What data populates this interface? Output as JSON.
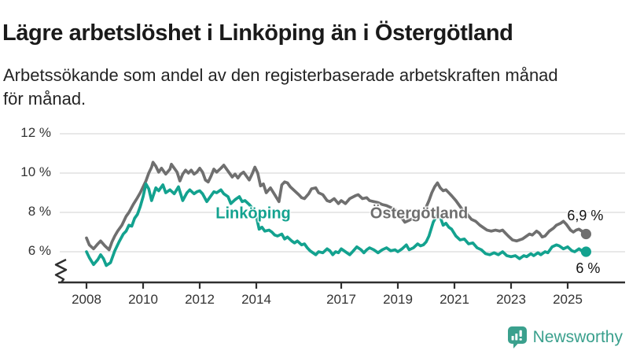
{
  "header": {
    "title": "Lägre arbetslöshet i Linköping än i Östergötland",
    "subtitle_line1": "Arbetssökande som andel av den registerbaserade arbetskraften månad",
    "subtitle_line2": "för månad."
  },
  "logo": {
    "text": "Newsworthy",
    "color": "#3aa08d",
    "icon": "newsworthy-bar-chart-bubble-icon"
  },
  "chart_data": {
    "type": "line",
    "title": "Lägre arbetslöshet i Linköping än i Östergötland",
    "unit": "%",
    "xlim": [
      2008,
      2026
    ],
    "ylim": [
      5.2,
      12.6
    ],
    "y_axis_break": true,
    "grid": "horizontal",
    "legend_position": "inline-labels",
    "x_ticks": [
      2008,
      2010,
      2012,
      2014,
      2017,
      2019,
      2021,
      2023,
      2025
    ],
    "x_tick_labels": [
      "2008",
      "2010",
      "2012",
      "2014",
      "2017",
      "2019",
      "2021",
      "2023",
      "2025"
    ],
    "y_ticks": [
      6,
      8,
      10,
      12
    ],
    "y_tick_labels": [
      "6 %",
      "8 %",
      "10 %",
      "12 %"
    ],
    "colors": {
      "linkoping": "#13a28f",
      "ostergotland": "#6f6f6f",
      "gridline": "#d9d9d9",
      "axis": "#2f2f2f",
      "tick_text": "#333333",
      "value_text": "#111111"
    },
    "series": [
      {
        "name": "Linköping",
        "color": "#13a28f",
        "end_label": "6 %",
        "end_value": 6.0,
        "points": [
          [
            2008.0,
            6.0
          ],
          [
            2008.1,
            5.7
          ],
          [
            2008.25,
            5.35
          ],
          [
            2008.4,
            5.6
          ],
          [
            2008.5,
            5.85
          ],
          [
            2008.6,
            5.65
          ],
          [
            2008.7,
            5.3
          ],
          [
            2008.85,
            5.45
          ],
          [
            2009.0,
            6.05
          ],
          [
            2009.15,
            6.5
          ],
          [
            2009.3,
            6.9
          ],
          [
            2009.4,
            7.05
          ],
          [
            2009.5,
            7.35
          ],
          [
            2009.6,
            7.3
          ],
          [
            2009.7,
            7.7
          ],
          [
            2009.8,
            7.9
          ],
          [
            2009.9,
            8.3
          ],
          [
            2010.0,
            8.8
          ],
          [
            2010.1,
            9.45
          ],
          [
            2010.2,
            9.2
          ],
          [
            2010.3,
            8.6
          ],
          [
            2010.45,
            9.25
          ],
          [
            2010.55,
            9.1
          ],
          [
            2010.7,
            9.4
          ],
          [
            2010.8,
            9.0
          ],
          [
            2010.95,
            9.15
          ],
          [
            2011.1,
            8.95
          ],
          [
            2011.25,
            9.3
          ],
          [
            2011.4,
            8.6
          ],
          [
            2011.55,
            9.0
          ],
          [
            2011.65,
            9.15
          ],
          [
            2011.8,
            8.95
          ],
          [
            2011.9,
            9.05
          ],
          [
            2012.0,
            9.1
          ],
          [
            2012.1,
            8.95
          ],
          [
            2012.25,
            8.55
          ],
          [
            2012.4,
            8.85
          ],
          [
            2012.5,
            9.05
          ],
          [
            2012.6,
            9.0
          ],
          [
            2012.75,
            9.15
          ],
          [
            2012.85,
            8.95
          ],
          [
            2013.0,
            8.8
          ],
          [
            2013.1,
            8.45
          ],
          [
            2013.25,
            8.65
          ],
          [
            2013.4,
            8.8
          ],
          [
            2013.5,
            8.55
          ],
          [
            2013.6,
            8.6
          ],
          [
            2013.75,
            8.4
          ],
          [
            2013.9,
            8.15
          ],
          [
            2014.0,
            7.8
          ],
          [
            2014.1,
            7.15
          ],
          [
            2014.2,
            7.25
          ],
          [
            2014.3,
            7.05
          ],
          [
            2014.45,
            7.1
          ],
          [
            2014.55,
            7.0
          ],
          [
            2014.65,
            6.85
          ],
          [
            2014.75,
            6.8
          ],
          [
            2014.9,
            6.9
          ],
          [
            2015.0,
            6.65
          ],
          [
            2015.1,
            6.75
          ],
          [
            2015.25,
            6.55
          ],
          [
            2015.35,
            6.45
          ],
          [
            2015.45,
            6.55
          ],
          [
            2015.6,
            6.35
          ],
          [
            2015.7,
            6.4
          ],
          [
            2015.8,
            6.2
          ],
          [
            2015.9,
            6.05
          ],
          [
            2016.0,
            5.95
          ],
          [
            2016.1,
            5.85
          ],
          [
            2016.2,
            6.0
          ],
          [
            2016.35,
            5.95
          ],
          [
            2016.5,
            6.15
          ],
          [
            2016.6,
            6.05
          ],
          [
            2016.7,
            5.85
          ],
          [
            2016.8,
            6.0
          ],
          [
            2016.9,
            5.95
          ],
          [
            2017.0,
            6.15
          ],
          [
            2017.1,
            6.05
          ],
          [
            2017.3,
            5.85
          ],
          [
            2017.4,
            6.0
          ],
          [
            2017.55,
            6.25
          ],
          [
            2017.7,
            6.1
          ],
          [
            2017.8,
            5.95
          ],
          [
            2017.9,
            6.1
          ],
          [
            2018.0,
            6.2
          ],
          [
            2018.15,
            6.1
          ],
          [
            2018.3,
            5.95
          ],
          [
            2018.45,
            6.1
          ],
          [
            2018.6,
            6.2
          ],
          [
            2018.75,
            6.05
          ],
          [
            2018.9,
            6.1
          ],
          [
            2019.0,
            6.0
          ],
          [
            2019.15,
            6.15
          ],
          [
            2019.3,
            6.35
          ],
          [
            2019.4,
            6.1
          ],
          [
            2019.55,
            6.2
          ],
          [
            2019.7,
            6.4
          ],
          [
            2019.8,
            6.3
          ],
          [
            2019.9,
            6.35
          ],
          [
            2020.0,
            6.5
          ],
          [
            2020.1,
            6.8
          ],
          [
            2020.25,
            7.5
          ],
          [
            2020.4,
            7.9
          ],
          [
            2020.5,
            7.75
          ],
          [
            2020.6,
            7.35
          ],
          [
            2020.7,
            7.45
          ],
          [
            2020.8,
            7.25
          ],
          [
            2020.9,
            7.15
          ],
          [
            2021.05,
            6.8
          ],
          [
            2021.2,
            6.6
          ],
          [
            2021.35,
            6.65
          ],
          [
            2021.5,
            6.4
          ],
          [
            2021.65,
            6.45
          ],
          [
            2021.8,
            6.2
          ],
          [
            2021.95,
            6.1
          ],
          [
            2022.1,
            5.9
          ],
          [
            2022.25,
            5.85
          ],
          [
            2022.4,
            5.95
          ],
          [
            2022.55,
            5.85
          ],
          [
            2022.7,
            6.0
          ],
          [
            2022.85,
            5.8
          ],
          [
            2023.0,
            5.75
          ],
          [
            2023.15,
            5.8
          ],
          [
            2023.3,
            5.65
          ],
          [
            2023.45,
            5.8
          ],
          [
            2023.55,
            5.75
          ],
          [
            2023.7,
            5.9
          ],
          [
            2023.8,
            5.8
          ],
          [
            2023.95,
            5.95
          ],
          [
            2024.05,
            5.85
          ],
          [
            2024.2,
            6.0
          ],
          [
            2024.3,
            5.95
          ],
          [
            2024.45,
            6.25
          ],
          [
            2024.6,
            6.35
          ],
          [
            2024.7,
            6.3
          ],
          [
            2024.85,
            6.15
          ],
          [
            2025.0,
            6.25
          ],
          [
            2025.15,
            6.05
          ],
          [
            2025.25,
            6.0
          ],
          [
            2025.4,
            6.15
          ],
          [
            2025.5,
            6.05
          ],
          [
            2025.65,
            6.0
          ]
        ]
      },
      {
        "name": "Östergötland",
        "color": "#6f6f6f",
        "end_label": "6,9 %",
        "end_value": 6.9,
        "points": [
          [
            2008.0,
            6.7
          ],
          [
            2008.1,
            6.35
          ],
          [
            2008.25,
            6.15
          ],
          [
            2008.4,
            6.4
          ],
          [
            2008.5,
            6.55
          ],
          [
            2008.65,
            6.3
          ],
          [
            2008.8,
            6.1
          ],
          [
            2008.9,
            6.5
          ],
          [
            2009.0,
            6.8
          ],
          [
            2009.1,
            7.05
          ],
          [
            2009.25,
            7.35
          ],
          [
            2009.4,
            7.8
          ],
          [
            2009.5,
            8.0
          ],
          [
            2009.65,
            8.4
          ],
          [
            2009.8,
            8.75
          ],
          [
            2009.9,
            9.0
          ],
          [
            2010.0,
            9.3
          ],
          [
            2010.1,
            9.6
          ],
          [
            2010.2,
            10.0
          ],
          [
            2010.3,
            10.3
          ],
          [
            2010.35,
            10.55
          ],
          [
            2010.45,
            10.35
          ],
          [
            2010.55,
            10.05
          ],
          [
            2010.65,
            10.25
          ],
          [
            2010.8,
            9.95
          ],
          [
            2010.95,
            10.2
          ],
          [
            2011.0,
            10.45
          ],
          [
            2011.1,
            10.25
          ],
          [
            2011.2,
            10.05
          ],
          [
            2011.3,
            9.6
          ],
          [
            2011.4,
            9.95
          ],
          [
            2011.5,
            10.15
          ],
          [
            2011.6,
            10.0
          ],
          [
            2011.7,
            10.15
          ],
          [
            2011.8,
            9.95
          ],
          [
            2011.9,
            10.05
          ],
          [
            2012.0,
            10.25
          ],
          [
            2012.1,
            10.05
          ],
          [
            2012.2,
            9.65
          ],
          [
            2012.3,
            9.55
          ],
          [
            2012.4,
            9.85
          ],
          [
            2012.5,
            10.2
          ],
          [
            2012.6,
            10.05
          ],
          [
            2012.75,
            10.25
          ],
          [
            2012.85,
            10.4
          ],
          [
            2012.95,
            10.2
          ],
          [
            2013.05,
            10.0
          ],
          [
            2013.15,
            9.8
          ],
          [
            2013.25,
            9.95
          ],
          [
            2013.35,
            9.75
          ],
          [
            2013.45,
            9.95
          ],
          [
            2013.55,
            10.05
          ],
          [
            2013.65,
            9.85
          ],
          [
            2013.75,
            9.65
          ],
          [
            2013.85,
            9.95
          ],
          [
            2013.95,
            10.3
          ],
          [
            2014.05,
            10.0
          ],
          [
            2014.15,
            9.35
          ],
          [
            2014.25,
            9.45
          ],
          [
            2014.35,
            9.0
          ],
          [
            2014.5,
            9.25
          ],
          [
            2014.65,
            8.9
          ],
          [
            2014.8,
            8.55
          ],
          [
            2014.9,
            9.4
          ],
          [
            2015.0,
            9.55
          ],
          [
            2015.1,
            9.5
          ],
          [
            2015.2,
            9.3
          ],
          [
            2015.35,
            9.1
          ],
          [
            2015.5,
            8.9
          ],
          [
            2015.6,
            8.75
          ],
          [
            2015.7,
            8.7
          ],
          [
            2015.85,
            8.95
          ],
          [
            2015.95,
            9.2
          ],
          [
            2016.1,
            9.25
          ],
          [
            2016.2,
            9.0
          ],
          [
            2016.35,
            8.9
          ],
          [
            2016.5,
            8.6
          ],
          [
            2016.6,
            8.55
          ],
          [
            2016.75,
            8.7
          ],
          [
            2016.9,
            8.45
          ],
          [
            2017.0,
            8.6
          ],
          [
            2017.15,
            8.45
          ],
          [
            2017.3,
            8.7
          ],
          [
            2017.5,
            8.85
          ],
          [
            2017.6,
            8.9
          ],
          [
            2017.75,
            8.7
          ],
          [
            2017.9,
            8.75
          ],
          [
            2018.0,
            8.6
          ],
          [
            2018.15,
            8.55
          ],
          [
            2018.3,
            8.5
          ],
          [
            2018.45,
            8.4
          ],
          [
            2018.6,
            8.35
          ],
          [
            2018.75,
            8.25
          ],
          [
            2018.9,
            8.15
          ],
          [
            2019.0,
            8.0
          ],
          [
            2019.1,
            7.8
          ],
          [
            2019.25,
            7.5
          ],
          [
            2019.4,
            7.6
          ],
          [
            2019.55,
            7.7
          ],
          [
            2019.7,
            7.85
          ],
          [
            2019.85,
            7.95
          ],
          [
            2019.95,
            8.1
          ],
          [
            2020.1,
            8.6
          ],
          [
            2020.2,
            9.0
          ],
          [
            2020.3,
            9.3
          ],
          [
            2020.4,
            9.5
          ],
          [
            2020.5,
            9.25
          ],
          [
            2020.6,
            9.1
          ],
          [
            2020.7,
            9.15
          ],
          [
            2020.8,
            9.0
          ],
          [
            2020.9,
            8.85
          ],
          [
            2021.05,
            8.6
          ],
          [
            2021.15,
            8.4
          ],
          [
            2021.3,
            8.1
          ],
          [
            2021.45,
            7.9
          ],
          [
            2021.6,
            7.65
          ],
          [
            2021.75,
            7.55
          ],
          [
            2021.9,
            7.35
          ],
          [
            2022.0,
            7.25
          ],
          [
            2022.15,
            7.1
          ],
          [
            2022.3,
            7.05
          ],
          [
            2022.45,
            7.1
          ],
          [
            2022.6,
            7.05
          ],
          [
            2022.7,
            7.1
          ],
          [
            2022.8,
            6.95
          ],
          [
            2022.9,
            6.8
          ],
          [
            2023.05,
            6.6
          ],
          [
            2023.2,
            6.55
          ],
          [
            2023.3,
            6.6
          ],
          [
            2023.4,
            6.65
          ],
          [
            2023.5,
            6.75
          ],
          [
            2023.65,
            6.9
          ],
          [
            2023.75,
            6.85
          ],
          [
            2023.9,
            7.05
          ],
          [
            2024.0,
            6.95
          ],
          [
            2024.1,
            6.75
          ],
          [
            2024.2,
            6.8
          ],
          [
            2024.35,
            7.05
          ],
          [
            2024.5,
            7.2
          ],
          [
            2024.6,
            7.35
          ],
          [
            2024.75,
            7.45
          ],
          [
            2024.85,
            7.55
          ],
          [
            2024.95,
            7.4
          ],
          [
            2025.1,
            7.1
          ],
          [
            2025.2,
            7.0
          ],
          [
            2025.3,
            7.1
          ],
          [
            2025.4,
            7.15
          ],
          [
            2025.5,
            7.05
          ],
          [
            2025.65,
            6.9
          ]
        ]
      }
    ]
  }
}
